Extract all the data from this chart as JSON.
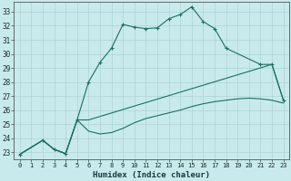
{
  "xlabel": "Humidex (Indice chaleur)",
  "xlim": [
    -0.5,
    23.5
  ],
  "ylim": [
    22.5,
    33.7
  ],
  "xticks": [
    0,
    1,
    2,
    3,
    4,
    5,
    6,
    7,
    8,
    9,
    10,
    11,
    12,
    13,
    14,
    15,
    16,
    17,
    18,
    19,
    20,
    21,
    22,
    23
  ],
  "yticks": [
    23,
    24,
    25,
    26,
    27,
    28,
    29,
    30,
    31,
    32,
    33
  ],
  "background_color": "#c8eaec",
  "grid_color": "#aed4d6",
  "line_color": "#1a7060",
  "line1_x": [
    0,
    2,
    3,
    4,
    5,
    6,
    7,
    8,
    9,
    10,
    11,
    12,
    13,
    14,
    15,
    16,
    17,
    18,
    21,
    22,
    23
  ],
  "line1_y": [
    22.85,
    23.85,
    23.2,
    22.9,
    25.3,
    28.0,
    29.4,
    30.4,
    32.1,
    31.9,
    31.8,
    31.85,
    32.5,
    32.8,
    33.35,
    32.3,
    31.8,
    30.4,
    29.25,
    29.25,
    26.7
  ],
  "line2_x": [
    0,
    2,
    3,
    4,
    5,
    6,
    22,
    23
  ],
  "line2_y": [
    22.85,
    23.85,
    23.2,
    22.9,
    25.3,
    25.3,
    29.25,
    26.7
  ],
  "line3_x": [
    0,
    2,
    3,
    4,
    5,
    6,
    7,
    8,
    9,
    10,
    11,
    12,
    13,
    14,
    15,
    16,
    17,
    18,
    19,
    20,
    21,
    22,
    23
  ],
  "line3_y": [
    22.85,
    23.85,
    23.2,
    22.9,
    25.3,
    24.5,
    24.3,
    24.4,
    24.7,
    25.1,
    25.4,
    25.6,
    25.8,
    26.0,
    26.25,
    26.45,
    26.6,
    26.7,
    26.8,
    26.85,
    26.8,
    26.7,
    26.5
  ]
}
